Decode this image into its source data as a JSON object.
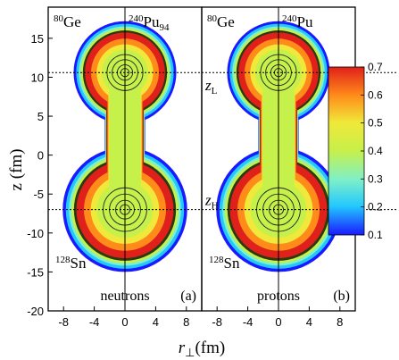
{
  "chart_data": {
    "type": "heatmap",
    "description_units": "density contours, color scale 0.1 to 0.7",
    "xlabel_main": "r",
    "xlabel_sub": "⊥",
    "xlabel_unit": "(fm)",
    "ylabel": "z (fm)",
    "x_ticks": [
      "-8",
      "-4",
      "0",
      "4",
      "8"
    ],
    "x_tick_values": [
      -8,
      -4,
      0,
      4,
      8
    ],
    "y_ticks": [
      "15",
      "10",
      "5",
      "0",
      "-5",
      "-10",
      "-15",
      "-20"
    ],
    "y_tick_values": [
      15,
      10,
      5,
      0,
      -5,
      -10,
      -15,
      -20
    ],
    "xlim": [
      -10,
      10
    ],
    "ylim": [
      -20,
      19
    ],
    "reference_lines": {
      "z_L": 10.6,
      "z_H": -7.0
    },
    "colorbar": {
      "min": 0.1,
      "max": 0.7,
      "ticks": [
        "0.7",
        "0.6",
        "0.5",
        "0.4",
        "0.3",
        "0.2",
        "0.1"
      ],
      "tick_values": [
        0.7,
        0.6,
        0.5,
        0.4,
        0.3,
        0.2,
        0.1
      ],
      "colors": [
        "#1a1aff",
        "#22c8ff",
        "#7ff0c8",
        "#c6f04a",
        "#f0e83a",
        "#ff8c1a",
        "#e0201a"
      ]
    },
    "fragments": {
      "upper_center_z": 10.6,
      "upper_radius": 6.6,
      "lower_center_z": -7.0,
      "lower_radius": 8.0,
      "neck_half_width": 2.6
    },
    "panels": [
      {
        "id": "a",
        "tag": "(a)",
        "species": "neutrons",
        "light_fragment": {
          "mass": "80",
          "element": "Ge"
        },
        "parent": {
          "mass": "240",
          "element": "Pu",
          "sub": "94"
        },
        "heavy_fragment": {
          "mass": "128",
          "element": "Sn"
        },
        "z_labels": false
      },
      {
        "id": "b",
        "tag": "(b)",
        "species": "protons",
        "light_fragment": {
          "mass": "80",
          "element": "Ge"
        },
        "parent": {
          "mass": "240",
          "element": "Pu",
          "sub": ""
        },
        "heavy_fragment": {
          "mass": "128",
          "element": "Sn"
        },
        "z_labels": true,
        "z_label_L": "z",
        "z_label_L_sub": "L",
        "z_label_H": "z",
        "z_label_H_sub": "H"
      }
    ]
  }
}
